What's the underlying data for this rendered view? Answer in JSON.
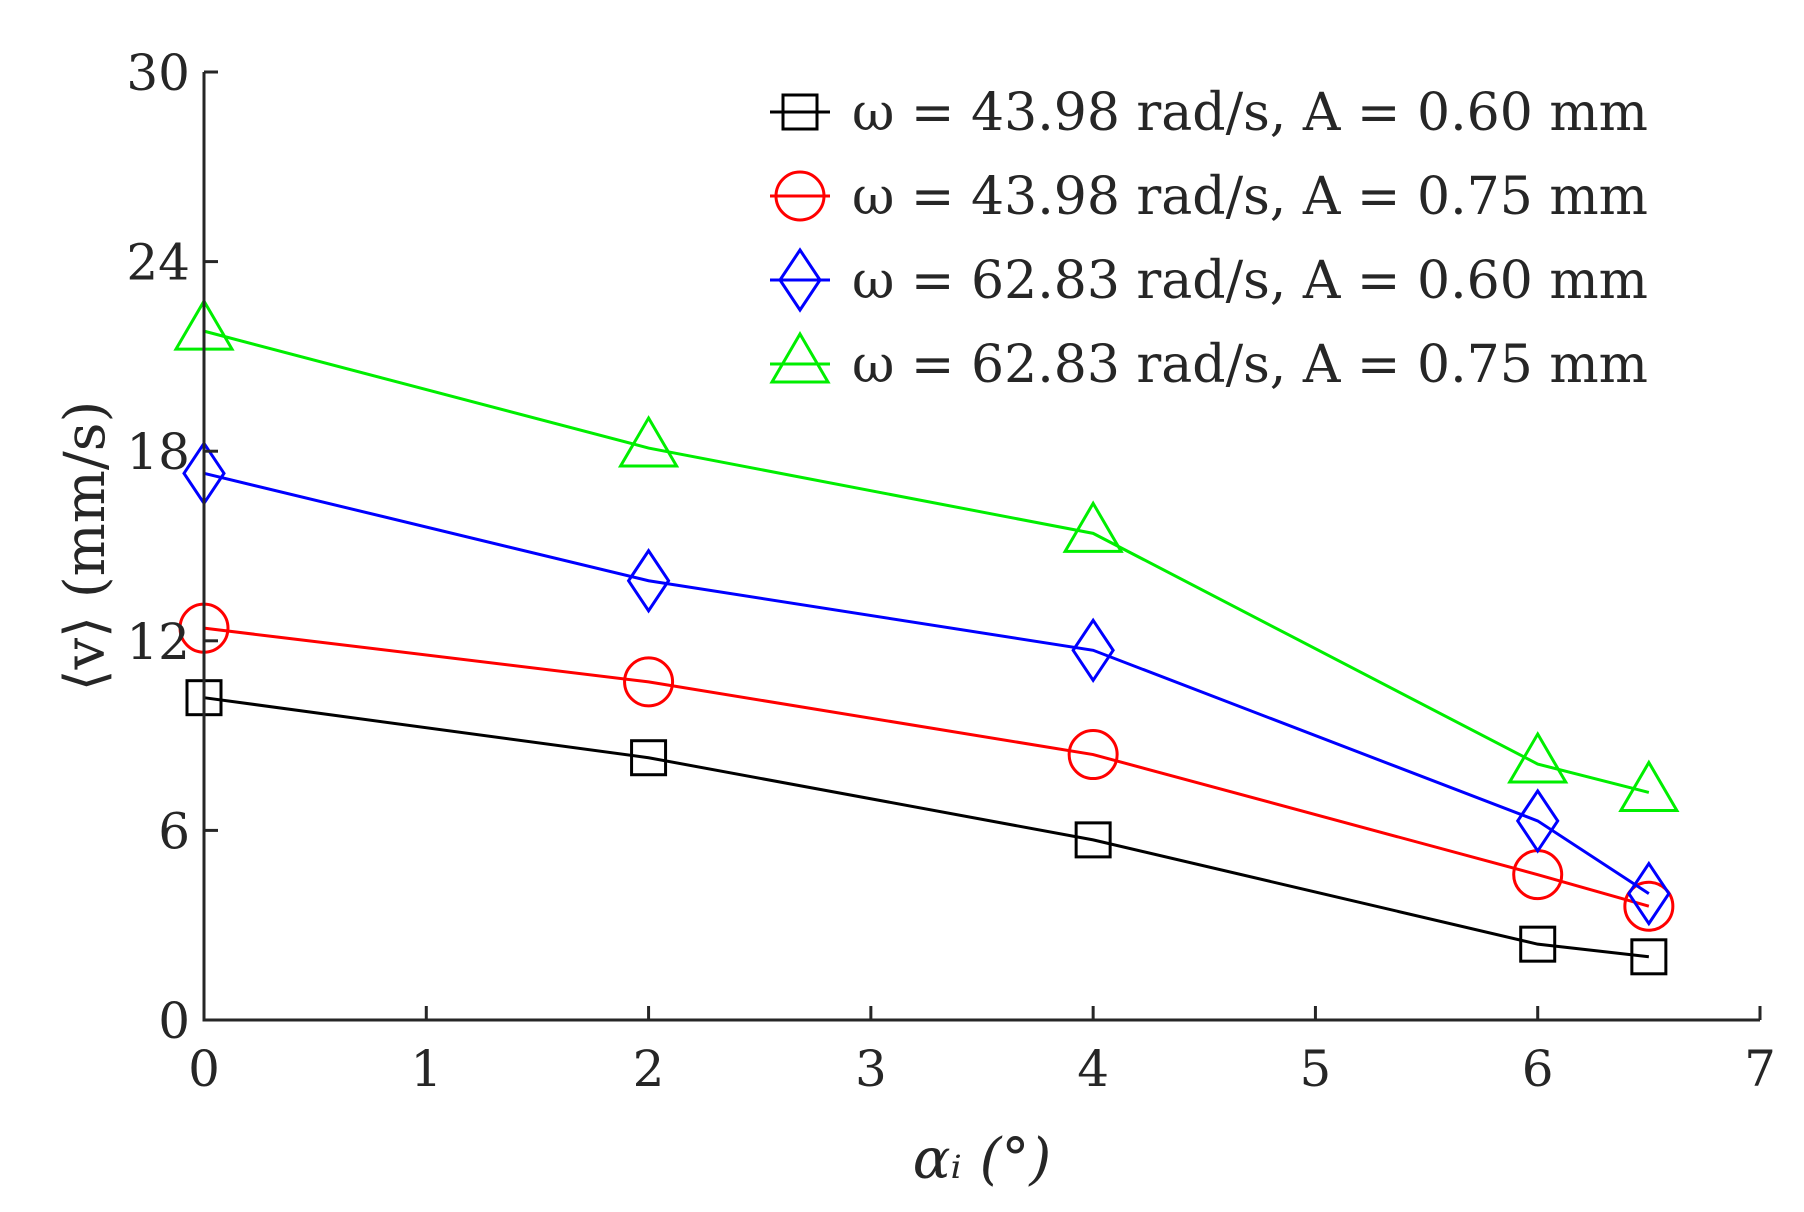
{
  "chart_data": {
    "type": "line",
    "title": "",
    "xlabel": "αᵢ (°)",
    "ylabel": "⟨v⟩ (mm/s)",
    "xlim": [
      0,
      7
    ],
    "ylim": [
      0,
      30
    ],
    "xticks": [
      0,
      1,
      2,
      3,
      4,
      5,
      6,
      7
    ],
    "yticks": [
      0,
      6,
      12,
      18,
      24,
      30
    ],
    "grid": false,
    "legend_position": "top-right",
    "series": [
      {
        "name": "ω = 43.98 rad/s, A = 0.60 mm",
        "marker": "square",
        "color": "#000000",
        "x": [
          0,
          2,
          4,
          6,
          6.5
        ],
        "y": [
          10.2,
          8.3,
          5.7,
          2.4,
          2.0
        ]
      },
      {
        "name": "ω = 43.98 rad/s, A = 0.75 mm",
        "marker": "circle",
        "color": "#ff0000",
        "x": [
          0,
          2,
          4,
          6,
          6.5
        ],
        "y": [
          12.4,
          10.7,
          8.4,
          4.6,
          3.6
        ]
      },
      {
        "name": "ω = 62.83 rad/s, A = 0.60 mm",
        "marker": "diamond",
        "color": "#0000ff",
        "x": [
          0,
          2,
          4,
          6,
          6.5
        ],
        "y": [
          17.3,
          13.9,
          11.7,
          6.3,
          4.0
        ]
      },
      {
        "name": "ω = 62.83 rad/s, A = 0.75 mm",
        "marker": "triangle",
        "color": "#00ee00",
        "x": [
          0,
          2,
          4,
          6,
          6.5
        ],
        "y": [
          21.8,
          18.1,
          15.4,
          8.1,
          7.2
        ]
      }
    ]
  }
}
